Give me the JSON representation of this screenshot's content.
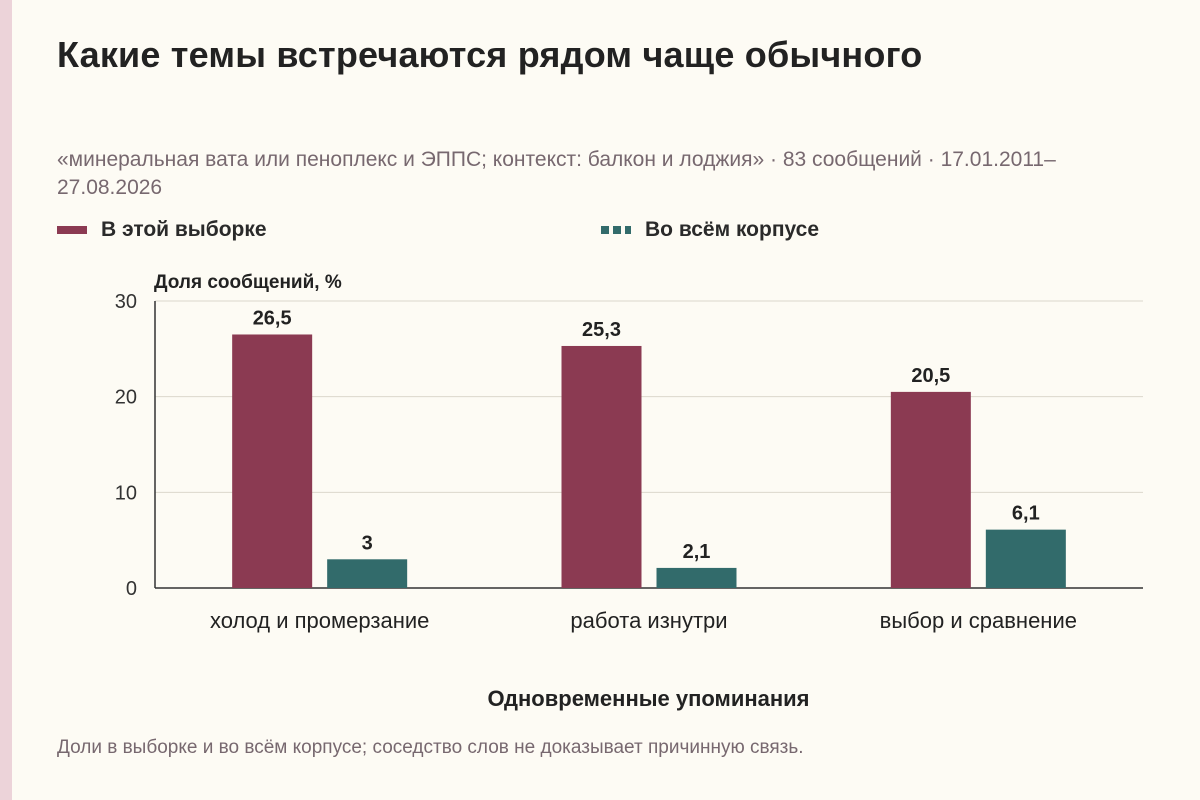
{
  "colors": {
    "sample": "#8b3a52",
    "corpus": "#326b6b",
    "grid": "#dcd7cc",
    "axis": "#333333",
    "accent_strip": "#ecd3d9"
  },
  "header": {
    "title": "Какие темы встречаются рядом чаще обычного",
    "subtitle": "«минеральная вата или пеноплекс и ЭППС; контекст: балкон и лоджия» · 83 сообщений · 17.01.2011–27.08.2026"
  },
  "footer": {
    "note": "Доли в выборке и во всём корпусе; соседство слов не доказывает причинную связь."
  },
  "chart_data": {
    "type": "bar",
    "title": "Какие темы встречаются рядом чаще обычного",
    "xlabel": "Одновременные упоминания",
    "ylabel": "Доля сообщений, %",
    "categories": [
      "холод и промерзание",
      "работа изнутри",
      "выбор и сравнение"
    ],
    "series": [
      {
        "name": "В этой выборке",
        "values": [
          26.5,
          25.3,
          20.5
        ],
        "labels": [
          "26,5",
          "25,3",
          "20,5"
        ],
        "color": "#8b3a52",
        "legend_style": "solid"
      },
      {
        "name": "Во всём корпусе",
        "values": [
          3,
          2.1,
          6.1
        ],
        "labels": [
          "3",
          "2,1",
          "6,1"
        ],
        "color": "#326b6b",
        "legend_style": "dashed"
      }
    ],
    "ylim": [
      0,
      30
    ],
    "yticks": [
      0,
      10,
      20,
      30
    ],
    "grid": true,
    "legend_position": "top-left"
  }
}
